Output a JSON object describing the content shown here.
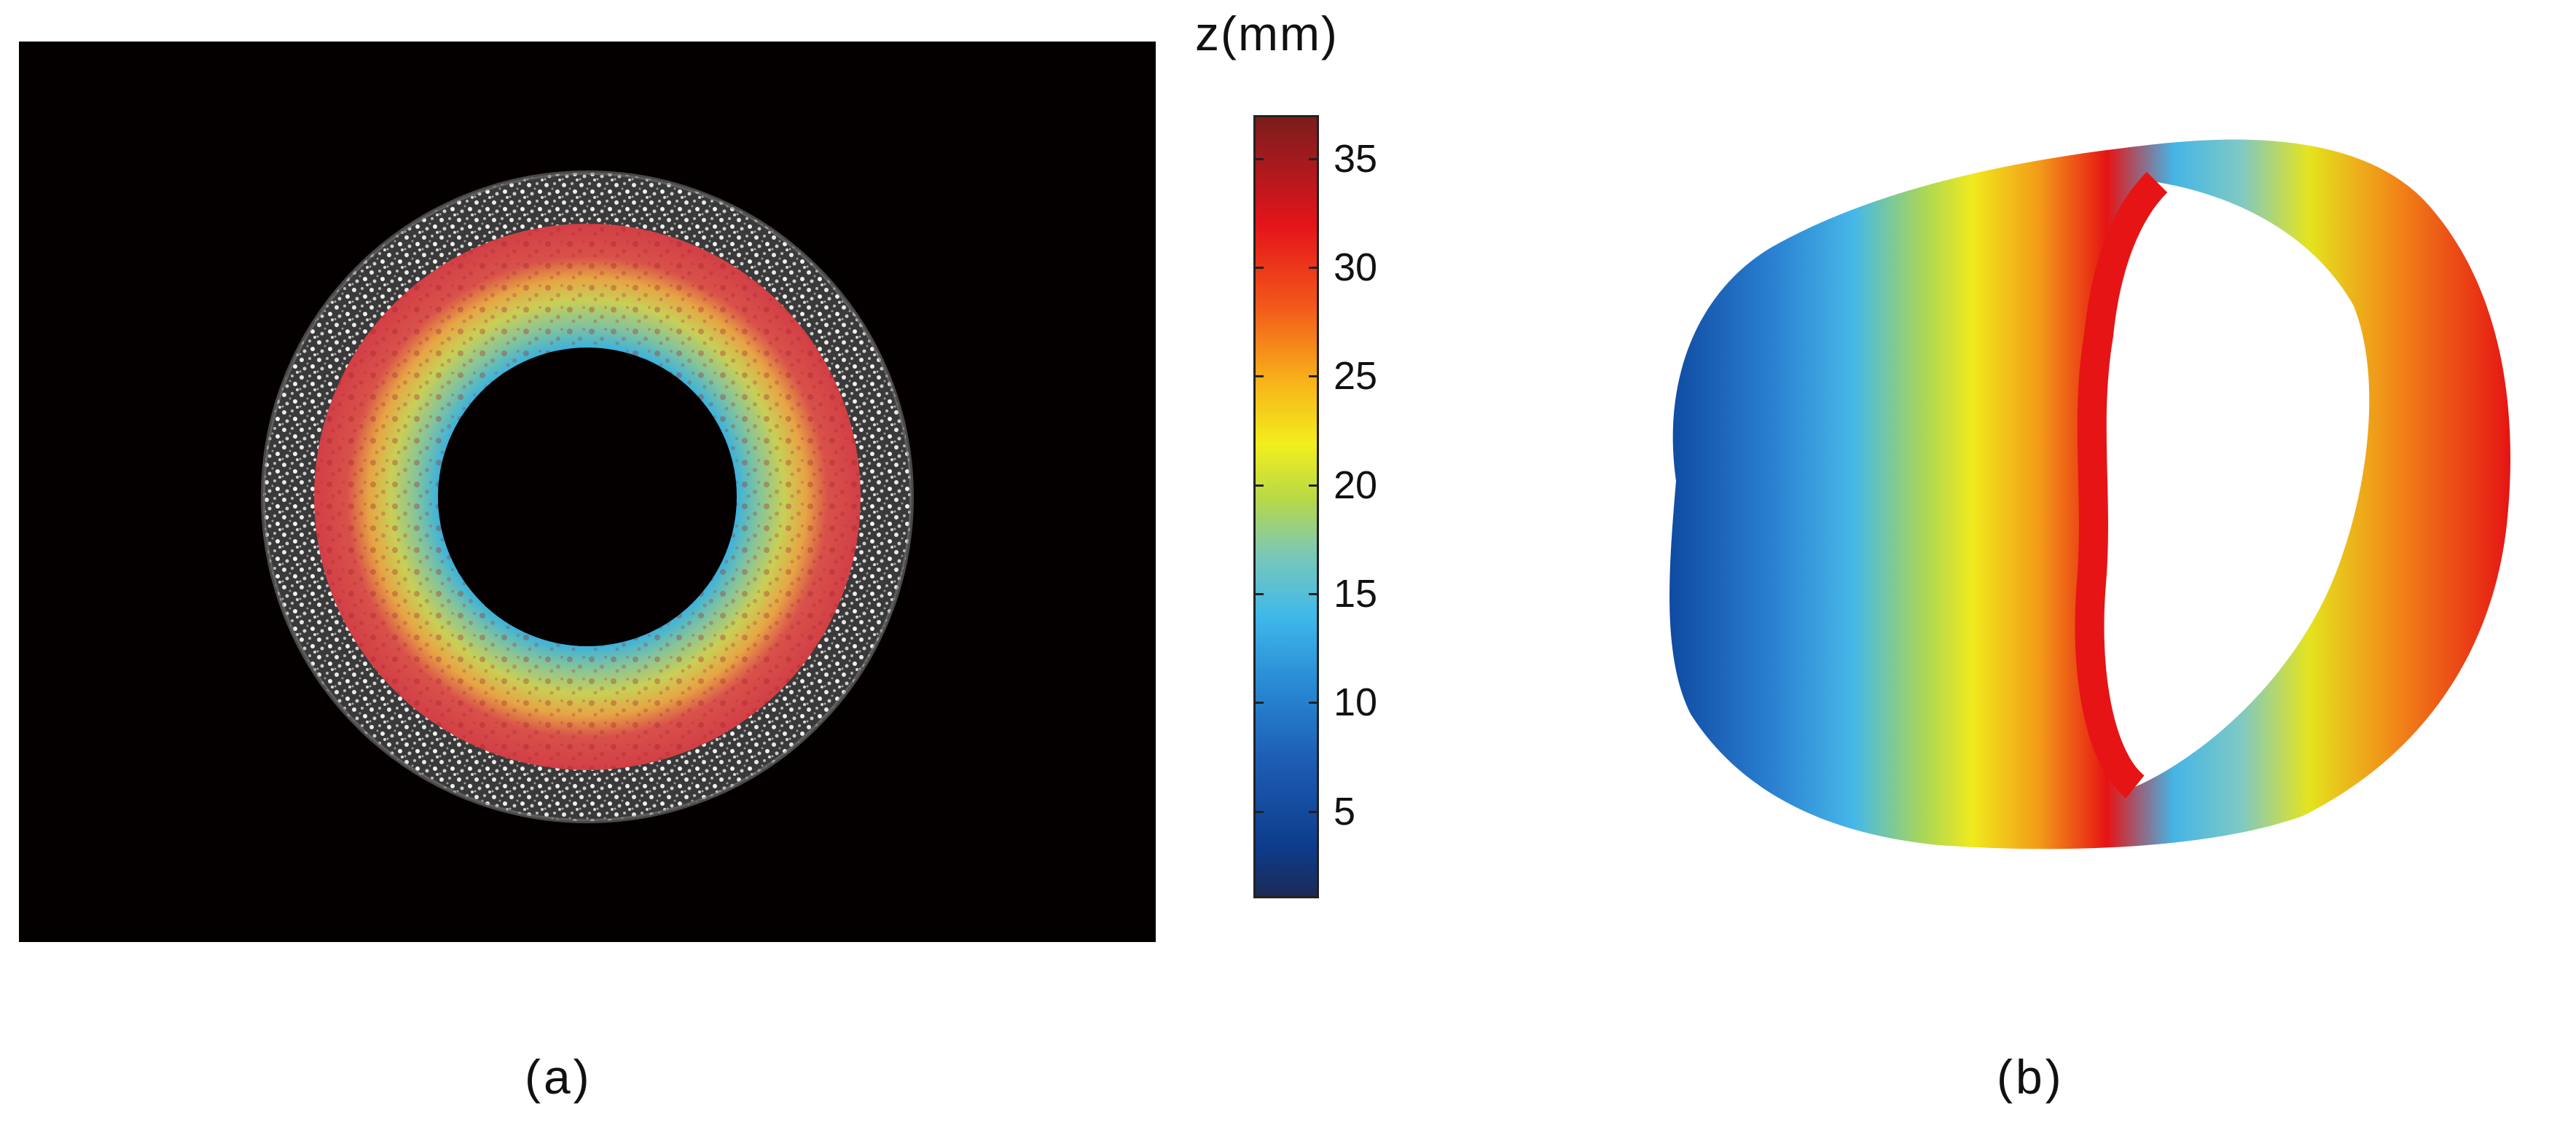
{
  "figure": {
    "colorbar": {
      "title": "z(mm)",
      "min": 1,
      "max": 37,
      "ticks": [
        "5",
        "10",
        "15",
        "20",
        "25",
        "30",
        "35"
      ]
    },
    "captions": {
      "a": "(a)",
      "b": "(b)"
    }
  }
}
